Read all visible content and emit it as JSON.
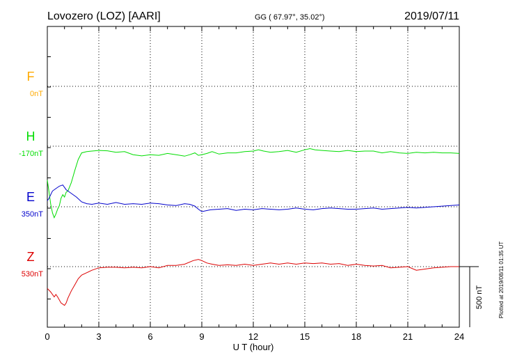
{
  "header": {
    "station": "Lovozero (LOZ)  [AARI]",
    "coords": "GG ( 67.97°,  35.02°)",
    "date": "2019/07/11"
  },
  "footer_note": "Plotted at 2019/08/11 01:35 UT",
  "colors": {
    "F": "#ffaa00",
    "H": "#00dd00",
    "E": "#0000cc",
    "Z": "#dd0000",
    "axis": "#000000",
    "grid": "#000000"
  },
  "chart_data": {
    "type": "line",
    "xlabel": "U T (hour)",
    "xlim": [
      0,
      24
    ],
    "xticks": [
      0,
      3,
      6,
      9,
      12,
      15,
      18,
      21,
      24
    ],
    "xtick_labels": [
      "0",
      "3",
      "6",
      "9",
      "12",
      "15",
      "18",
      "21",
      "24"
    ],
    "grid": true,
    "scale_bar": {
      "label": "500 nT",
      "nT": 500
    },
    "panels": [
      {
        "name": "F",
        "baseline": "0nT",
        "values_nT": []
      },
      {
        "name": "H",
        "baseline": "-170nT",
        "x": [
          0,
          0.1,
          0.2,
          0.3,
          0.4,
          0.5,
          0.6,
          0.7,
          0.8,
          0.9,
          1.0,
          1.1,
          1.2,
          1.4,
          1.6,
          1.8,
          2.0,
          2.3,
          2.6,
          3.0,
          3.5,
          4.0,
          4.5,
          5.0,
          5.5,
          6.0,
          6.5,
          7.0,
          7.5,
          8.0,
          8.3,
          8.6,
          8.8,
          9.0,
          9.3,
          9.6,
          10.0,
          10.5,
          11.0,
          11.5,
          12.0,
          12.3,
          12.6,
          13.0,
          13.5,
          14.0,
          14.5,
          15.0,
          15.3,
          15.6,
          16.0,
          16.5,
          17.0,
          17.5,
          18.0,
          18.5,
          19.0,
          19.5,
          20.0,
          20.5,
          21.0,
          21.5,
          22.0,
          22.5,
          23.0,
          23.5,
          24.0
        ],
        "values_nT": [
          -280,
          -380,
          -480,
          -550,
          -590,
          -560,
          -520,
          -490,
          -430,
          -400,
          -420,
          -380,
          -370,
          -300,
          -200,
          -110,
          -55,
          -45,
          -40,
          -35,
          -38,
          -50,
          -45,
          -70,
          -80,
          -70,
          -75,
          -60,
          -70,
          -82,
          -70,
          -55,
          -75,
          -70,
          -60,
          -45,
          -65,
          -55,
          -55,
          -45,
          -40,
          -30,
          -40,
          -50,
          -45,
          -35,
          -50,
          -30,
          -20,
          -30,
          -35,
          -40,
          -45,
          -35,
          -45,
          -40,
          -40,
          -55,
          -45,
          -55,
          -60,
          -50,
          -55,
          -50,
          -55,
          -55,
          -60
        ]
      },
      {
        "name": "E",
        "baseline": "350nT",
        "x": [
          0,
          0.1,
          0.2,
          0.3,
          0.5,
          0.7,
          0.9,
          1.0,
          1.1,
          1.3,
          1.5,
          1.7,
          2.0,
          2.3,
          2.6,
          3.0,
          3.5,
          4.0,
          4.5,
          5.0,
          5.5,
          6.0,
          6.5,
          7.0,
          7.5,
          8.0,
          8.3,
          8.6,
          8.8,
          9.0,
          9.5,
          10.0,
          10.5,
          11.0,
          11.5,
          12.0,
          12.5,
          13.0,
          13.5,
          14.0,
          14.5,
          15.0,
          15.5,
          16.0,
          16.5,
          17.0,
          17.5,
          18.0,
          18.5,
          19.0,
          19.5,
          20.0,
          20.5,
          21.0,
          21.5,
          22.0,
          22.5,
          23.0,
          23.5,
          24.0
        ],
        "values_nT": [
          50,
          70,
          100,
          130,
          150,
          170,
          180,
          160,
          140,
          120,
          100,
          80,
          40,
          25,
          20,
          30,
          20,
          35,
          20,
          25,
          20,
          30,
          25,
          15,
          10,
          25,
          20,
          5,
          -20,
          -40,
          -25,
          -20,
          -15,
          -30,
          -20,
          -25,
          -15,
          -20,
          -25,
          -20,
          -10,
          -20,
          -25,
          -15,
          -10,
          -15,
          -20,
          -20,
          -15,
          -10,
          -20,
          -15,
          -10,
          -5,
          -10,
          -5,
          0,
          5,
          10,
          15
        ]
      },
      {
        "name": "Z",
        "baseline": "530nT",
        "x": [
          0,
          0.2,
          0.4,
          0.5,
          0.6,
          0.8,
          1.0,
          1.1,
          1.2,
          1.4,
          1.6,
          1.8,
          2.0,
          2.3,
          2.6,
          3.0,
          3.5,
          4.0,
          4.5,
          5.0,
          5.5,
          6.0,
          6.5,
          7.0,
          7.5,
          8.0,
          8.5,
          8.8,
          9.0,
          9.3,
          9.6,
          10.0,
          10.5,
          11.0,
          11.5,
          12.0,
          12.5,
          13.0,
          13.5,
          14.0,
          14.5,
          15.0,
          15.5,
          16.0,
          16.5,
          17.0,
          17.5,
          18.0,
          18.5,
          19.0,
          19.5,
          20.0,
          20.5,
          21.0,
          21.5,
          22.0,
          22.5,
          23.0,
          23.5,
          24.0
        ],
        "values_nT": [
          -180,
          -210,
          -250,
          -230,
          -250,
          -300,
          -320,
          -300,
          -260,
          -200,
          -150,
          -100,
          -70,
          -50,
          -30,
          -10,
          -5,
          -5,
          -10,
          -5,
          -10,
          0,
          -10,
          10,
          10,
          20,
          50,
          60,
          50,
          30,
          20,
          10,
          15,
          10,
          20,
          10,
          20,
          30,
          20,
          30,
          20,
          30,
          25,
          30,
          20,
          25,
          10,
          20,
          10,
          5,
          10,
          -10,
          -5,
          0,
          -30,
          -20,
          -10,
          -5,
          0,
          0
        ]
      }
    ]
  }
}
